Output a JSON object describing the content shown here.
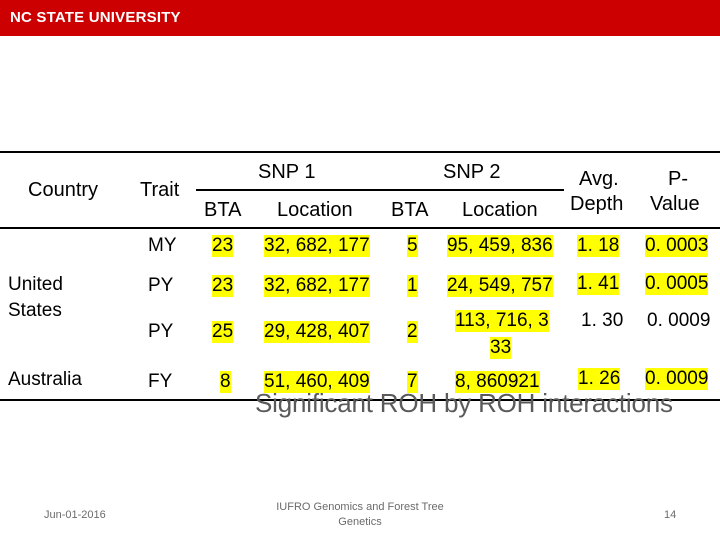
{
  "header": {
    "logo_text": "NC STATE UNIVERSITY",
    "brand_color": "#cc0000"
  },
  "table": {
    "headers": {
      "country": "Country",
      "trait": "Trait",
      "snp1": "SNP 1",
      "snp2": "SNP 2",
      "bta1": "BTA",
      "location1": "Location",
      "bta2": "BTA",
      "location2": "Location",
      "avg_depth_line1": "Avg.",
      "avg_depth_line2": "Depth",
      "pvalue_line1": "P-",
      "pvalue_line2": "Value"
    },
    "countries": [
      "United States",
      "Australia"
    ],
    "rows": [
      {
        "trait": "MY",
        "bta1": "23",
        "location1": "32, 682, 177",
        "bta2": "5",
        "location2": "95, 459, 836",
        "avg_depth": "1. 18",
        "pvalue": "0. 0003"
      },
      {
        "trait": "PY",
        "bta1": "23",
        "location1": "32, 682, 177",
        "bta2": "1",
        "location2": "24, 549, 757",
        "avg_depth": "1. 41",
        "pvalue": "0. 0005"
      },
      {
        "trait": "PY",
        "bta1": "25",
        "location1": "29, 428, 407",
        "bta2": "2",
        "location2_line1": "113, 716, 3",
        "location2_line2": "33",
        "avg_depth": "1. 30",
        "pvalue": "0. 0009"
      },
      {
        "trait": "FY",
        "bta1": "8",
        "location1": "51, 460, 409",
        "bta2": "7",
        "location2": "8, 860921",
        "avg_depth": "1. 26",
        "pvalue": "0. 0009"
      }
    ],
    "highlight_color": "#ffff00"
  },
  "slide_title": "Significant ROH by ROH interactions",
  "footer": {
    "date": "Jun-01-2016",
    "center_line1": "IUFRO Genomics and Forest Tree",
    "center_line2": "Genetics",
    "page_number": "14"
  }
}
